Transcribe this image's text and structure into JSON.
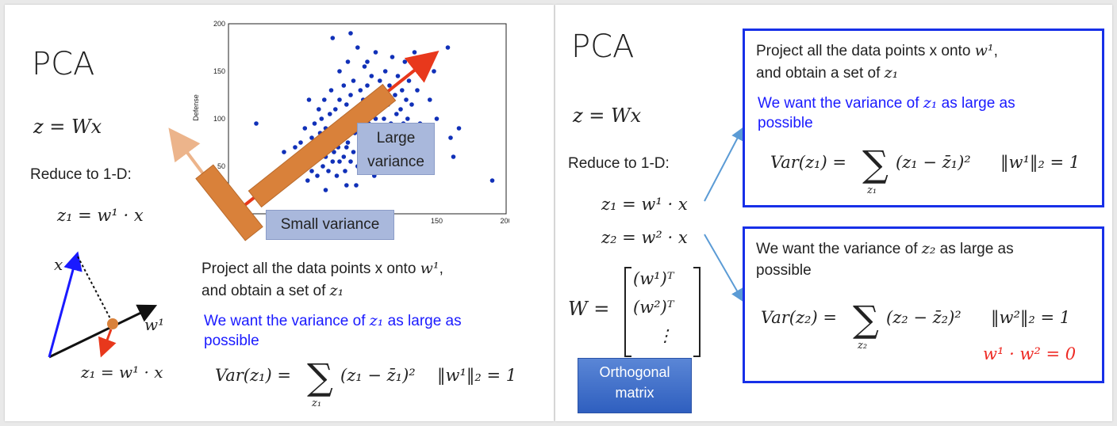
{
  "left": {
    "title": "PCA",
    "eq_z": "z = Wx",
    "reduce": "Reduce to 1-D:",
    "eq_z1": "z₁ = w¹ · x",
    "vec_x": "x",
    "vec_w1": "w¹",
    "proj_eq": "z₁ = w¹ · x",
    "project_line1_prefix": "Project all the data points x onto ",
    "project_line1_w": "w¹",
    "project_line1_suffix": ",",
    "project_line2_prefix": "and obtain a set of ",
    "project_line2_z": "z₁",
    "want_prefix": "We want the variance of ",
    "want_z": "z₁",
    "want_suffix": " as large as",
    "want_line2": "possible",
    "var_lhs": "Var(z₁) = ",
    "var_body": "(z₁ − z̄₁)²",
    "var_sub": "z₁",
    "norm": "‖w¹‖₂ = 1",
    "label_large_1": "Large",
    "label_large_2": "variance",
    "label_small": "Small variance"
  },
  "chart_data": {
    "type": "scatter",
    "ylabel": "Defense",
    "xlim": [
      0,
      200
    ],
    "ylim": [
      0,
      200
    ],
    "x_ticks": [
      "150",
      "200"
    ],
    "y_ticks": [
      "200",
      "150",
      "100",
      "50"
    ],
    "points": [
      [
        20,
        95
      ],
      [
        35,
        40
      ],
      [
        40,
        65
      ],
      [
        42,
        40
      ],
      [
        45,
        55
      ],
      [
        48,
        70
      ],
      [
        50,
        42
      ],
      [
        52,
        75
      ],
      [
        55,
        60
      ],
      [
        55,
        90
      ],
      [
        57,
        35
      ],
      [
        58,
        68
      ],
      [
        60,
        45
      ],
      [
        60,
        80
      ],
      [
        62,
        95
      ],
      [
        62,
        55
      ],
      [
        64,
        40
      ],
      [
        65,
        70
      ],
      [
        66,
        85
      ],
      [
        67,
        100
      ],
      [
        68,
        50
      ],
      [
        69,
        120
      ],
      [
        70,
        60
      ],
      [
        70,
        90
      ],
      [
        72,
        45
      ],
      [
        72,
        75
      ],
      [
        73,
        105
      ],
      [
        74,
        130
      ],
      [
        75,
        55
      ],
      [
        75,
        85
      ],
      [
        76,
        65
      ],
      [
        77,
        110
      ],
      [
        78,
        95
      ],
      [
        78,
        40
      ],
      [
        79,
        70
      ],
      [
        80,
        150
      ],
      [
        80,
        55
      ],
      [
        80,
        120
      ],
      [
        81,
        80
      ],
      [
        82,
        100
      ],
      [
        83,
        60
      ],
      [
        83,
        135
      ],
      [
        84,
        45
      ],
      [
        84,
        90
      ],
      [
        85,
        70
      ],
      [
        85,
        115
      ],
      [
        86,
        160
      ],
      [
        86,
        75
      ],
      [
        87,
        105
      ],
      [
        88,
        55
      ],
      [
        88,
        125
      ],
      [
        89,
        95
      ],
      [
        90,
        65
      ],
      [
        90,
        140
      ],
      [
        91,
        85
      ],
      [
        92,
        110
      ],
      [
        93,
        50
      ],
      [
        93,
        175
      ],
      [
        94,
        100
      ],
      [
        95,
        75
      ],
      [
        95,
        130
      ],
      [
        96,
        60
      ],
      [
        96,
        90
      ],
      [
        97,
        120
      ],
      [
        98,
        80
      ],
      [
        98,
        155
      ],
      [
        99,
        105
      ],
      [
        100,
        70
      ],
      [
        100,
        135
      ],
      [
        101,
        95
      ],
      [
        102,
        115
      ],
      [
        103,
        60
      ],
      [
        103,
        145
      ],
      [
        104,
        85
      ],
      [
        105,
        125
      ],
      [
        106,
        100
      ],
      [
        106,
        170
      ],
      [
        107,
        75
      ],
      [
        108,
        110
      ],
      [
        109,
        140
      ],
      [
        110,
        90
      ],
      [
        110,
        60
      ],
      [
        111,
        120
      ],
      [
        112,
        100
      ],
      [
        113,
        150
      ],
      [
        114,
        80
      ],
      [
        115,
        115
      ],
      [
        116,
        135
      ],
      [
        117,
        95
      ],
      [
        118,
        165
      ],
      [
        119,
        70
      ],
      [
        120,
        125
      ],
      [
        121,
        105
      ],
      [
        122,
        145
      ],
      [
        123,
        85
      ],
      [
        124,
        110
      ],
      [
        125,
        130
      ],
      [
        126,
        95
      ],
      [
        127,
        160
      ],
      [
        128,
        120
      ],
      [
        129,
        100
      ],
      [
        130,
        140
      ],
      [
        132,
        115
      ],
      [
        134,
        170
      ],
      [
        136,
        130
      ],
      [
        138,
        95
      ],
      [
        140,
        155
      ],
      [
        145,
        120
      ],
      [
        148,
        150
      ],
      [
        150,
        100
      ],
      [
        158,
        175
      ],
      [
        160,
        80
      ],
      [
        162,
        60
      ],
      [
        166,
        90
      ],
      [
        190,
        35
      ],
      [
        75,
        185
      ],
      [
        88,
        190
      ],
      [
        100,
        160
      ],
      [
        92,
        30
      ],
      [
        70,
        25
      ],
      [
        85,
        30
      ],
      [
        65,
        110
      ],
      [
        58,
        120
      ],
      [
        105,
        40
      ],
      [
        115,
        45
      ],
      [
        125,
        55
      ],
      [
        135,
        60
      ],
      [
        96,
        45
      ],
      [
        104,
        50
      ],
      [
        112,
        75
      ]
    ]
  },
  "right": {
    "title": "PCA",
    "eq_z": "z = Wx",
    "reduce": "Reduce to 1-D:",
    "eq_z1": "z₁ = w¹ · x",
    "eq_z2": "z₂ = w² · x",
    "W_lhs": "W = ",
    "W_row1": "(w¹)ᵀ",
    "W_row2": "(w²)ᵀ",
    "W_row3": "⋮",
    "ortho_1": "Orthogonal",
    "ortho_2": "matrix",
    "box1_line1_prefix": "Project all the data points x onto ",
    "box1_line1_w": "w¹",
    "box1_line1_suffix": ",",
    "box1_line2_prefix": "and obtain a set of ",
    "box1_line2_z": "z₁",
    "box1_want_prefix": "We want the variance of ",
    "box1_want_z": "z₁",
    "box1_want_suffix": " as large as",
    "box1_want_line2": "possible",
    "box1_var_lhs": "Var(z₁) = ",
    "box1_var_body": "(z₁ − z̄₁)²",
    "box1_var_sub": "z₁",
    "box1_norm": "‖w¹‖₂ = 1",
    "box2_want_prefix": "We want the variance of ",
    "box2_want_z": "z₂",
    "box2_want_suffix": " as large as",
    "box2_want_line2": "possible",
    "box2_var_lhs": "Var(z₂) = ",
    "box2_var_body": "(z₂ − z̄₂)²",
    "box2_var_sub": "z₂",
    "box2_norm": "‖w²‖₂ = 1",
    "box2_ortho": "w¹ · w² = 0"
  },
  "colors": {
    "box_border": "#1730e8",
    "want_text": "#1a1aff",
    "ortho_text": "#ee2a24",
    "scatter_point": "#1030b8",
    "bar_orange": "#d9813a",
    "arrow_red": "#e8381c",
    "arrow_tan": "#ecb48b",
    "vec_blue": "#1a1aff",
    "connector": "#5b9bd5"
  }
}
